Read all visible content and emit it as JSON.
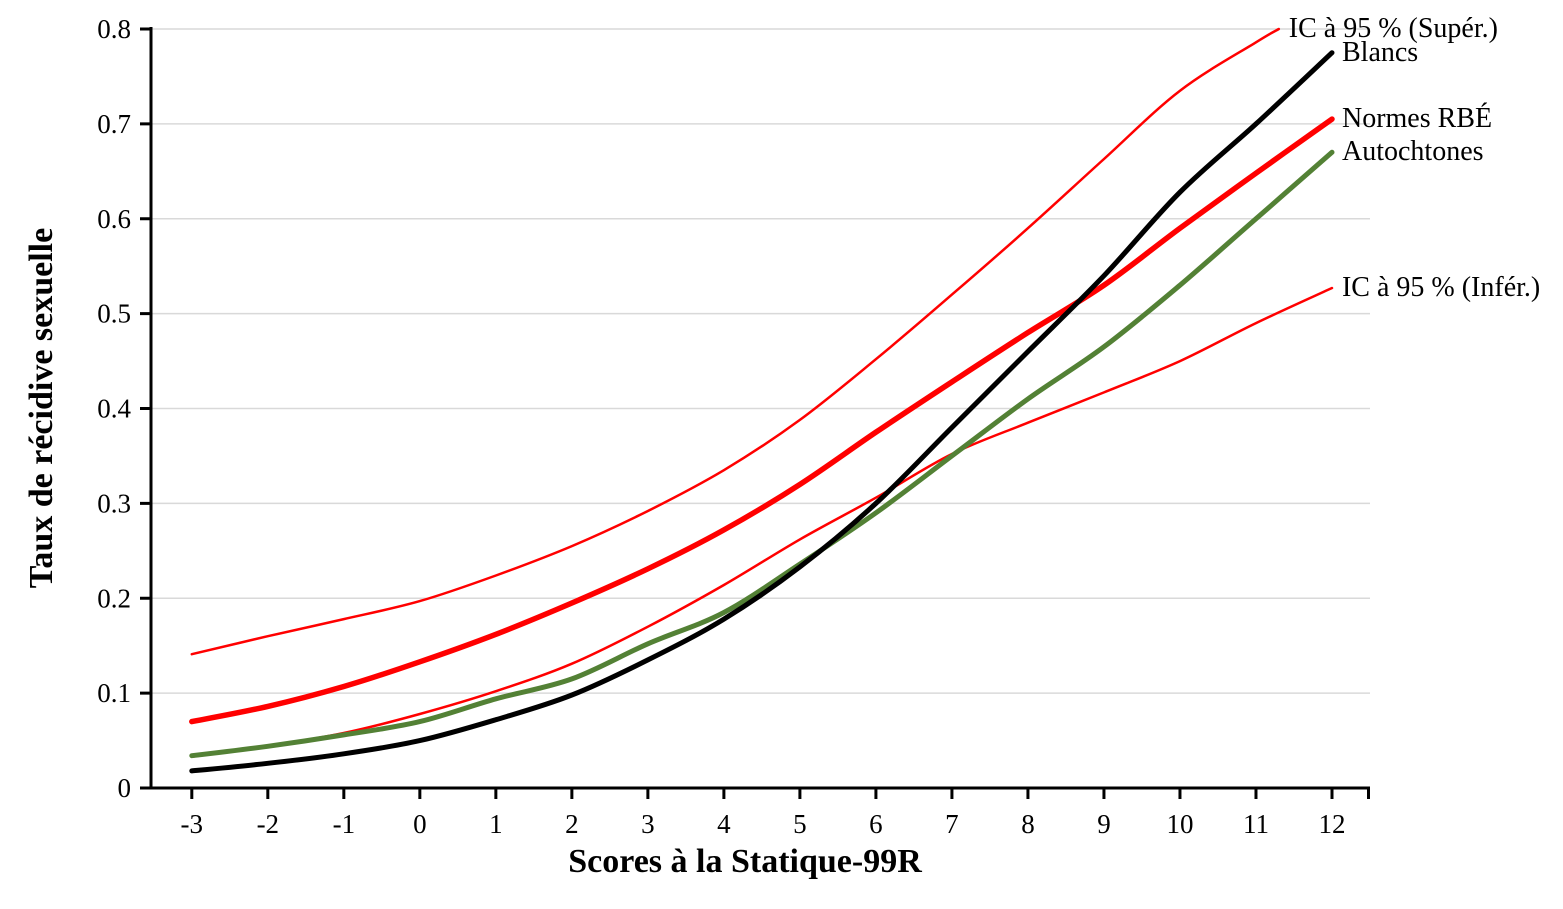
{
  "chart_data": {
    "type": "line",
    "title": "",
    "xlabel": "Scores à la Statique-99R",
    "ylabel": "Taux de récidive sexuelle",
    "xlim": [
      -3.55,
      12.5
    ],
    "ylim": [
      0,
      0.8
    ],
    "x_ticks": [
      -3,
      -2,
      -1,
      0,
      1,
      2,
      3,
      4,
      5,
      6,
      7,
      8,
      9,
      10,
      11,
      12
    ],
    "y_ticks": [
      0,
      0.1,
      0.2,
      0.3,
      0.4,
      0.5,
      0.6,
      0.7,
      0.8
    ],
    "y_tick_labels": [
      "0",
      "0.1",
      "0.2",
      "0.3",
      "0.4",
      "0.5",
      "0.6",
      "0.7",
      "0.8"
    ],
    "grid": "horizontal-only",
    "gridline_color": "#d9d9d9",
    "axis_color": "#000000",
    "legend_position": "line-end-labels",
    "series": [
      {
        "label": "IC à 95 % (Supér.)",
        "slug": "ci-95-superieur",
        "color": "#ff0000",
        "width": 2.5,
        "x": [
          -3,
          -2,
          -1,
          0,
          1,
          2,
          3,
          4,
          5,
          6,
          7,
          8,
          9,
          10,
          11,
          11.3
        ],
        "values": [
          0.141,
          0.16,
          0.178,
          0.197,
          0.224,
          0.255,
          0.292,
          0.335,
          0.388,
          0.452,
          0.52,
          0.59,
          0.663,
          0.735,
          0.786,
          0.8
        ]
      },
      {
        "label": "IC à 95 % (Infér.)",
        "slug": "ci-95-inferieur",
        "color": "#ff0000",
        "width": 2.5,
        "x": [
          -3,
          -2,
          -1,
          0,
          1,
          2,
          3,
          4,
          5,
          6,
          7,
          8,
          9,
          10,
          11,
          12
        ],
        "values": [
          0.033,
          0.044,
          0.058,
          0.078,
          0.102,
          0.131,
          0.17,
          0.214,
          0.262,
          0.306,
          0.352,
          0.385,
          0.417,
          0.45,
          0.49,
          0.527
        ]
      },
      {
        "label": "Normes RBÉ",
        "slug": "normes-rbe",
        "color": "#ff0000",
        "width": 5.5,
        "x": [
          -3,
          -2,
          -1,
          0,
          1,
          2,
          3,
          4,
          5,
          6,
          7,
          8,
          9,
          10,
          11,
          12
        ],
        "values": [
          0.07,
          0.086,
          0.107,
          0.133,
          0.162,
          0.195,
          0.231,
          0.272,
          0.32,
          0.375,
          0.428,
          0.48,
          0.53,
          0.59,
          0.648,
          0.705
        ]
      },
      {
        "label": "Autochtones",
        "slug": "autochtones",
        "color": "#538135",
        "width": 5,
        "x": [
          -3,
          -2,
          -1,
          0,
          1,
          2,
          3,
          4,
          5,
          6,
          7,
          8,
          9,
          10,
          11,
          12
        ],
        "values": [
          0.034,
          0.044,
          0.056,
          0.07,
          0.094,
          0.115,
          0.152,
          0.185,
          0.236,
          0.29,
          0.35,
          0.41,
          0.465,
          0.53,
          0.6,
          0.67
        ]
      },
      {
        "label": "Blancs",
        "slug": "blancs",
        "color": "#000000",
        "width": 5,
        "x": [
          -3,
          -2,
          -1,
          0,
          1,
          2,
          3,
          4,
          5,
          6,
          7,
          8,
          9,
          10,
          11,
          12
        ],
        "values": [
          0.018,
          0.026,
          0.036,
          0.05,
          0.072,
          0.098,
          0.135,
          0.178,
          0.233,
          0.3,
          0.38,
          0.46,
          0.54,
          0.628,
          0.7,
          0.775
        ]
      }
    ]
  }
}
